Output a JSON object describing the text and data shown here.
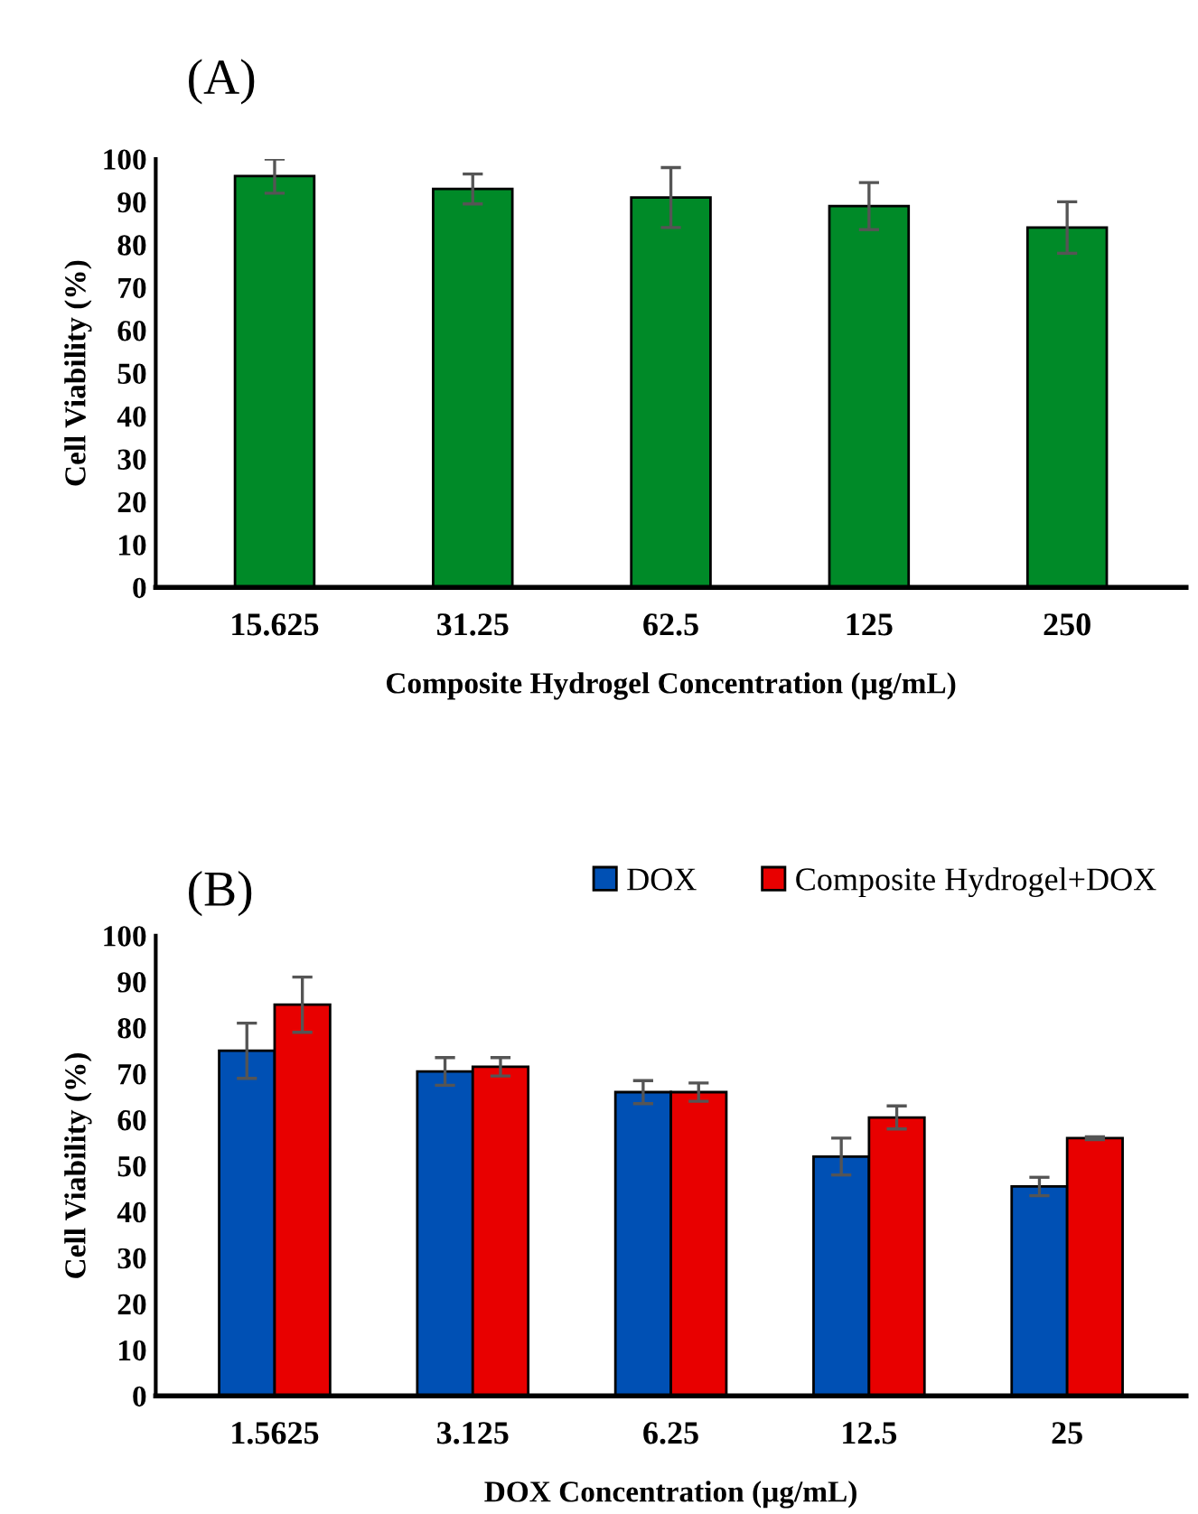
{
  "chart_data": [
    {
      "type": "bar",
      "title": "(A)",
      "xlabel": "Composite Hydrogel Concentration (µg/mL)",
      "ylabel": "Cell Viability (%)",
      "categories": [
        "15.625",
        "31.25",
        "62.5",
        "125",
        "250"
      ],
      "series": [
        {
          "color": "#008a28",
          "values": [
            96,
            93,
            91,
            89,
            84
          ],
          "errors": [
            4,
            3.5,
            7,
            5.5,
            6
          ]
        }
      ],
      "ylim": [
        0,
        100
      ],
      "yticks": [
        0,
        10,
        20,
        30,
        40,
        50,
        60,
        70,
        80,
        90,
        100
      ],
      "grid": false,
      "legend": false
    },
    {
      "type": "bar",
      "title": "(B)",
      "xlabel": "DOX Concentration (µg/mL)",
      "ylabel": "Cell Viability (%)",
      "categories": [
        "1.5625",
        "3.125",
        "6.25",
        "12.5",
        "25"
      ],
      "series": [
        {
          "name": "DOX",
          "color": "#0050b4",
          "values": [
            75,
            70.5,
            66,
            52,
            45.5
          ],
          "errors": [
            6,
            3,
            2.5,
            4,
            2
          ]
        },
        {
          "name": "Composite Hydrogel+DOX",
          "color": "#e80000",
          "values": [
            85,
            71.5,
            66,
            60.5,
            56
          ],
          "errors": [
            6,
            2,
            2,
            2.5,
            0.3
          ]
        }
      ],
      "ylim": [
        0,
        100
      ],
      "yticks": [
        0,
        10,
        20,
        30,
        40,
        50,
        60,
        70,
        80,
        90,
        100
      ],
      "grid": false,
      "legend": "top right"
    }
  ]
}
